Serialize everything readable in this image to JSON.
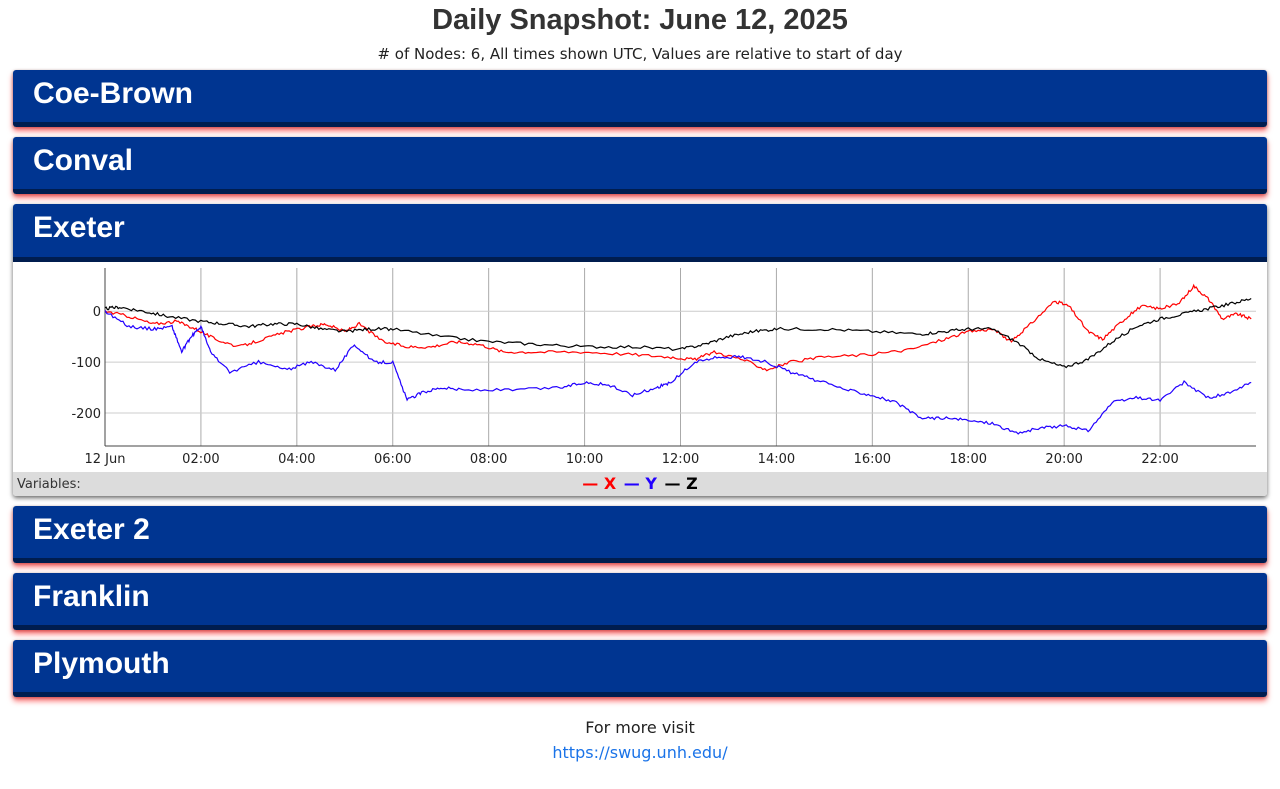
{
  "page": {
    "title": "Daily Snapshot: June 12, 2025",
    "subtitle": "# of Nodes: 6, All times shown UTC, Values are relative to start of day"
  },
  "nodes": [
    {
      "name": "Coe-Brown",
      "expanded": false
    },
    {
      "name": "Conval",
      "expanded": false
    },
    {
      "name": "Exeter",
      "expanded": true
    },
    {
      "name": "Exeter 2",
      "expanded": false
    },
    {
      "name": "Franklin",
      "expanded": false
    },
    {
      "name": "Plymouth",
      "expanded": false
    }
  ],
  "legend": {
    "label": "Variables:",
    "items": [
      {
        "name": "X",
        "color": "#ff0000"
      },
      {
        "name": "Y",
        "color": "#2200ff"
      },
      {
        "name": "Z",
        "color": "#000000"
      }
    ]
  },
  "footer": {
    "text": "For more visit",
    "link": "https://swug.unh.edu/"
  },
  "colors": {
    "header": "#003591",
    "header_border": "#001d4f",
    "shadow": "#ff0000"
  },
  "chart_data": {
    "type": "line",
    "x_unit": "hour (UTC)",
    "x_tick_labels": [
      "12 Jun",
      "02:00",
      "04:00",
      "06:00",
      "08:00",
      "10:00",
      "12:00",
      "14:00",
      "16:00",
      "18:00",
      "20:00",
      "22:00"
    ],
    "x_ticks": [
      0,
      2,
      4,
      6,
      8,
      10,
      12,
      14,
      16,
      18,
      20,
      22
    ],
    "y_ticks": [
      0,
      -100,
      -200
    ],
    "xlim": [
      0,
      24
    ],
    "ylim": [
      -265,
      85
    ],
    "grid": true,
    "series": [
      {
        "name": "X",
        "color": "#ff0000",
        "x": [
          0,
          0.5,
          1,
          1.5,
          1.9,
          2.3,
          2.8,
          3.3,
          3.8,
          4.3,
          4.6,
          5.0,
          5.3,
          5.8,
          6.3,
          6.8,
          7.3,
          7.8,
          8.3,
          9.0,
          10.0,
          11.0,
          11.8,
          12.3,
          12.7,
          13.3,
          13.8,
          14.3,
          15.0,
          16.0,
          16.8,
          17.5,
          18.0,
          18.5,
          18.9,
          19.3,
          19.8,
          20.1,
          20.5,
          20.8,
          21.2,
          21.6,
          22.0,
          22.4,
          22.7,
          23.0,
          23.3,
          23.6,
          23.9
        ],
        "y": [
          0,
          -10,
          -25,
          -20,
          -35,
          -55,
          -70,
          -55,
          -40,
          -30,
          -25,
          -40,
          -25,
          -60,
          -70,
          -70,
          -60,
          -65,
          -80,
          -80,
          -80,
          -85,
          -90,
          -95,
          -80,
          -95,
          -115,
          -100,
          -90,
          -85,
          -75,
          -55,
          -40,
          -35,
          -60,
          -25,
          20,
          10,
          -40,
          -55,
          -20,
          10,
          5,
          15,
          50,
          25,
          -15,
          -5,
          -15
        ]
      },
      {
        "name": "Y",
        "color": "#2200ff",
        "x": [
          0,
          0.5,
          1,
          1.4,
          1.6,
          1.8,
          2.0,
          2.2,
          2.6,
          3.2,
          3.8,
          4.3,
          4.8,
          5.2,
          5.6,
          6.0,
          6.3,
          6.6,
          7.0,
          7.5,
          8.5,
          9.5,
          10.0,
          10.5,
          11.0,
          11.5,
          11.8,
          12.3,
          12.8,
          13.3,
          13.8,
          14.3,
          14.8,
          15.5,
          16.0,
          16.5,
          17.0,
          17.5,
          18.0,
          18.5,
          19.0,
          19.5,
          20.0,
          20.5,
          21.0,
          21.5,
          22.0,
          22.5,
          23.0,
          23.5,
          23.9
        ],
        "y": [
          0,
          -30,
          -35,
          -30,
          -80,
          -50,
          -30,
          -80,
          -120,
          -100,
          -115,
          -100,
          -115,
          -65,
          -100,
          -100,
          -175,
          -160,
          -150,
          -155,
          -155,
          -150,
          -140,
          -145,
          -165,
          -150,
          -140,
          -100,
          -90,
          -90,
          -100,
          -120,
          -135,
          -155,
          -165,
          -180,
          -210,
          -210,
          -215,
          -220,
          -240,
          -230,
          -225,
          -235,
          -180,
          -170,
          -175,
          -140,
          -170,
          -160,
          -140
        ]
      },
      {
        "name": "Z",
        "color": "#000000",
        "x": [
          0,
          0.3,
          0.8,
          1.3,
          2.0,
          2.5,
          3.0,
          3.5,
          4.0,
          4.5,
          5.0,
          5.5,
          6.0,
          7.0,
          8.0,
          9.0,
          10.0,
          11.0,
          12.0,
          12.5,
          13.0,
          13.5,
          14.0,
          15.0,
          16.0,
          17.0,
          17.5,
          18.0,
          18.5,
          19.0,
          19.5,
          20.0,
          20.5,
          21.0,
          21.5,
          22.0,
          22.5,
          23.0,
          23.5,
          23.9
        ],
        "y": [
          5,
          8,
          0,
          -10,
          -20,
          -25,
          -30,
          -25,
          -25,
          -35,
          -40,
          -35,
          -35,
          -50,
          -60,
          -65,
          -70,
          -70,
          -75,
          -65,
          -50,
          -40,
          -35,
          -35,
          -40,
          -45,
          -40,
          -35,
          -35,
          -60,
          -95,
          -110,
          -95,
          -60,
          -30,
          -15,
          -5,
          5,
          15,
          25
        ]
      }
    ]
  }
}
